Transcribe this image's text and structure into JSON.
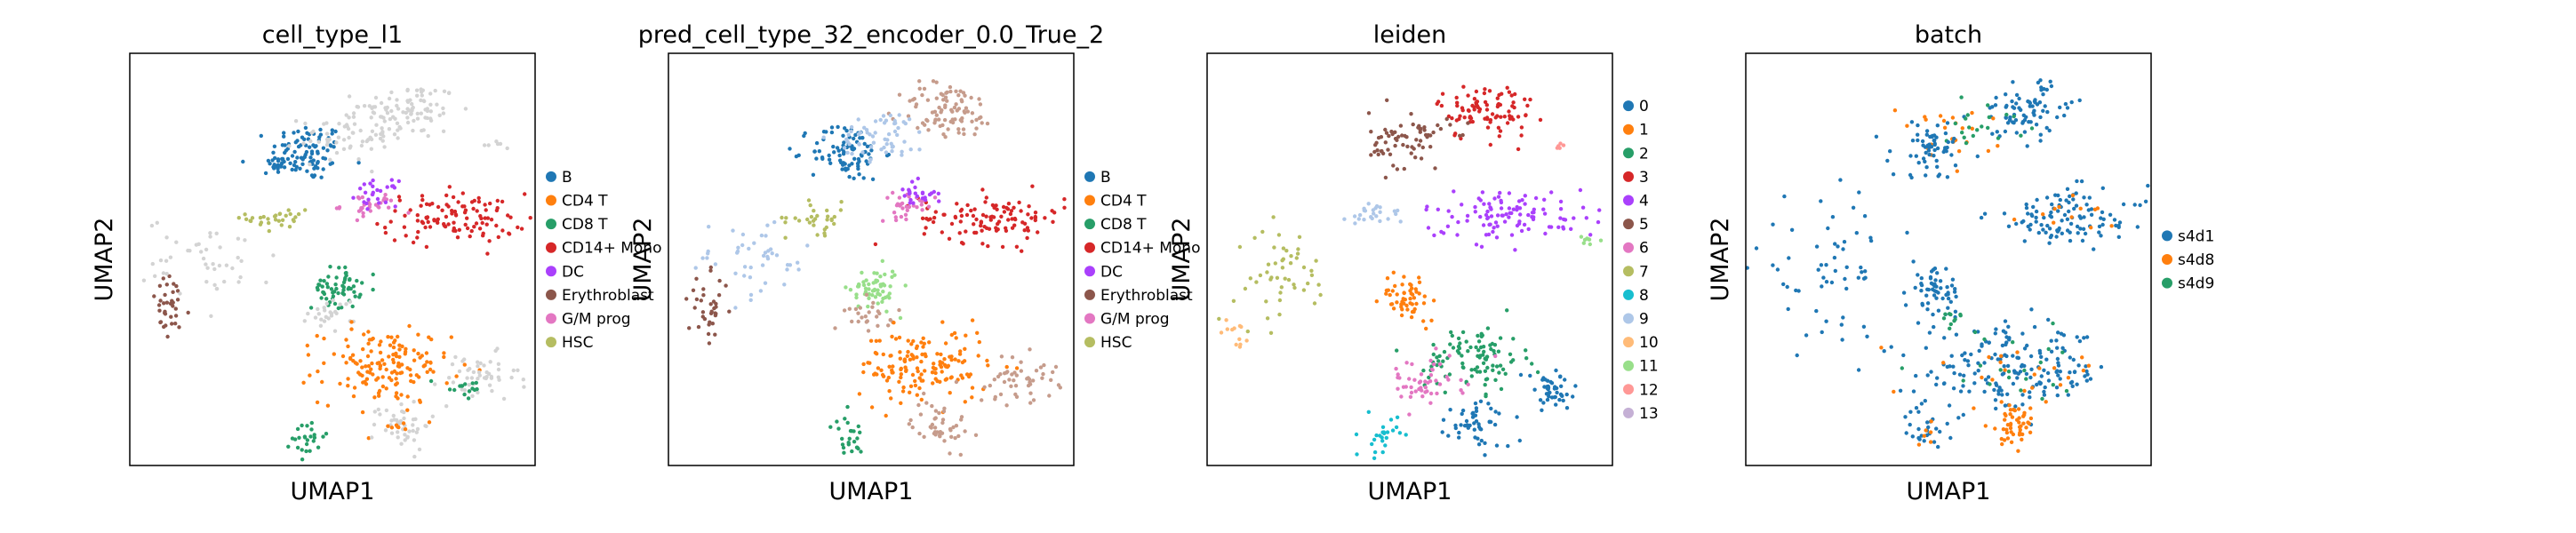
{
  "chart_data": [
    {
      "type": "scatter",
      "title": "cell_type_l1",
      "xlabel": "UMAP1",
      "ylabel": "UMAP2",
      "grid": false,
      "ticks": false,
      "legend_placement": "right",
      "legend": [
        "B",
        "CD4 T",
        "CD8 T",
        "CD14+ Mono",
        "DC",
        "Erythroblast",
        "G/M prog",
        "HSC"
      ],
      "colors": {
        "B": "#1f77b4",
        "CD4 T": "#ff7f0e",
        "CD8 T": "#279e68",
        "CD14+ Mono": "#d62728",
        "DC": "#aa40fc",
        "Erythroblast": "#8c564b",
        "G/M prog": "#e377c2",
        "HSC": "#b5bd61",
        "unlabeled": "#d3d3d3"
      },
      "clusters": [
        {
          "label": "B",
          "x": 4.4,
          "y": 7.6,
          "sx": 0.45,
          "sy": 0.35,
          "n": 90
        },
        {
          "label": "B",
          "x": 3.6,
          "y": 7.3,
          "sx": 0.2,
          "sy": 0.15,
          "n": 20
        },
        {
          "label": "unlabeled",
          "x": 6.9,
          "y": 8.6,
          "sx": 0.6,
          "sy": 0.35,
          "n": 90
        },
        {
          "label": "unlabeled",
          "x": 5.3,
          "y": 8.0,
          "sx": 0.55,
          "sy": 0.3,
          "n": 60
        },
        {
          "label": "unlabeled",
          "x": 9.1,
          "y": 7.8,
          "sx": 0.2,
          "sy": 0.1,
          "n": 6
        },
        {
          "label": "HSC",
          "x": 3.7,
          "y": 6.0,
          "sx": 0.4,
          "sy": 0.2,
          "n": 30
        },
        {
          "label": "CD14+ Mono",
          "x": 8.0,
          "y": 6.0,
          "sx": 0.9,
          "sy": 0.3,
          "n": 110
        },
        {
          "label": "G/M prog",
          "x": 5.9,
          "y": 6.3,
          "sx": 0.35,
          "sy": 0.15,
          "n": 30
        },
        {
          "label": "DC",
          "x": 6.1,
          "y": 6.6,
          "sx": 0.25,
          "sy": 0.15,
          "n": 25
        },
        {
          "label": "Erythroblast",
          "x": 1.0,
          "y": 3.8,
          "sx": 0.25,
          "sy": 0.4,
          "n": 35
        },
        {
          "label": "unlabeled",
          "x": 2.0,
          "y": 5.0,
          "sx": 0.8,
          "sy": 0.5,
          "n": 45
        },
        {
          "label": "CD8 T",
          "x": 5.1,
          "y": 4.3,
          "sx": 0.3,
          "sy": 0.25,
          "n": 60
        },
        {
          "label": "unlabeled",
          "x": 5.0,
          "y": 3.7,
          "sx": 0.3,
          "sy": 0.2,
          "n": 25
        },
        {
          "label": "CD4 T",
          "x": 6.3,
          "y": 2.4,
          "sx": 0.8,
          "sy": 0.45,
          "n": 150
        },
        {
          "label": "unlabeled",
          "x": 8.6,
          "y": 2.1,
          "sx": 0.5,
          "sy": 0.3,
          "n": 50
        },
        {
          "label": "CD8 T",
          "x": 8.2,
          "y": 1.9,
          "sx": 0.3,
          "sy": 0.15,
          "n": 15
        },
        {
          "label": "unlabeled",
          "x": 6.7,
          "y": 1.0,
          "sx": 0.35,
          "sy": 0.3,
          "n": 45
        },
        {
          "label": "CD4 T",
          "x": 6.6,
          "y": 1.0,
          "sx": 0.15,
          "sy": 0.1,
          "n": 8
        },
        {
          "label": "CD8 T",
          "x": 4.4,
          "y": 0.7,
          "sx": 0.2,
          "sy": 0.25,
          "n": 25
        }
      ]
    },
    {
      "type": "scatter",
      "title": "pred_cell_type_32_encoder_0.0_True_2",
      "xlabel": "UMAP1",
      "ylabel": "UMAP2",
      "grid": false,
      "ticks": false,
      "legend_placement": "right",
      "legend": [
        "B",
        "CD4 T",
        "CD8 T",
        "CD14+ Mono",
        "DC",
        "Erythroblast",
        "G/M prog",
        "HSC"
      ],
      "colors": {
        "B": "#1f77b4",
        "CD4 T": "#ff7f0e",
        "CD8 T": "#279e68",
        "CD14+ Mono": "#d62728",
        "DC": "#aa40fc",
        "Erythroblast": "#8c564b",
        "G/M prog": "#e377c2",
        "HSC": "#b5bd61",
        "other": "#c69c8c",
        "light": "#98df8a",
        "lightblue": "#aec7e8"
      },
      "clusters": [
        {
          "label": "B",
          "x": 4.4,
          "y": 7.6,
          "sx": 0.45,
          "sy": 0.35,
          "n": 90
        },
        {
          "label": "other",
          "x": 6.9,
          "y": 8.6,
          "sx": 0.6,
          "sy": 0.35,
          "n": 90
        },
        {
          "label": "lightblue",
          "x": 5.3,
          "y": 8.0,
          "sx": 0.55,
          "sy": 0.3,
          "n": 60
        },
        {
          "label": "HSC",
          "x": 3.7,
          "y": 6.0,
          "sx": 0.4,
          "sy": 0.2,
          "n": 30
        },
        {
          "label": "CD14+ Mono",
          "x": 8.0,
          "y": 6.0,
          "sx": 0.9,
          "sy": 0.3,
          "n": 110
        },
        {
          "label": "G/M prog",
          "x": 5.9,
          "y": 6.3,
          "sx": 0.35,
          "sy": 0.15,
          "n": 30
        },
        {
          "label": "DC",
          "x": 6.1,
          "y": 6.6,
          "sx": 0.25,
          "sy": 0.15,
          "n": 25
        },
        {
          "label": "Erythroblast",
          "x": 1.0,
          "y": 3.8,
          "sx": 0.25,
          "sy": 0.4,
          "n": 35
        },
        {
          "label": "lightblue",
          "x": 2.0,
          "y": 5.0,
          "sx": 0.8,
          "sy": 0.5,
          "n": 45
        },
        {
          "label": "light",
          "x": 5.1,
          "y": 4.3,
          "sx": 0.3,
          "sy": 0.25,
          "n": 60
        },
        {
          "label": "other",
          "x": 5.0,
          "y": 3.7,
          "sx": 0.3,
          "sy": 0.2,
          "n": 25
        },
        {
          "label": "CD4 T",
          "x": 6.3,
          "y": 2.4,
          "sx": 0.8,
          "sy": 0.45,
          "n": 150
        },
        {
          "label": "other",
          "x": 8.6,
          "y": 2.1,
          "sx": 0.5,
          "sy": 0.3,
          "n": 50
        },
        {
          "label": "other",
          "x": 6.7,
          "y": 1.0,
          "sx": 0.35,
          "sy": 0.3,
          "n": 45
        },
        {
          "label": "CD8 T",
          "x": 4.4,
          "y": 0.7,
          "sx": 0.2,
          "sy": 0.25,
          "n": 25
        }
      ]
    },
    {
      "type": "scatter",
      "title": "leiden",
      "xlabel": "UMAP1",
      "ylabel": "UMAP2",
      "grid": false,
      "ticks": false,
      "legend_placement": "right",
      "legend": [
        "0",
        "1",
        "2",
        "3",
        "4",
        "5",
        "6",
        "7",
        "8",
        "9",
        "10",
        "11",
        "12",
        "13"
      ],
      "colors": {
        "0": "#1f77b4",
        "1": "#ff7f0e",
        "2": "#279e68",
        "3": "#d62728",
        "4": "#aa40fc",
        "5": "#8c564b",
        "6": "#e377c2",
        "7": "#b5bd61",
        "8": "#17becf",
        "9": "#aec7e8",
        "10": "#ffbb78",
        "11": "#98df8a",
        "12": "#ff9896",
        "13": "#c5b0d5"
      },
      "clusters": [
        {
          "label": "3",
          "x": 6.9,
          "y": 8.6,
          "sx": 0.6,
          "sy": 0.35,
          "n": 90
        },
        {
          "label": "5",
          "x": 5.0,
          "y": 7.9,
          "sx": 0.5,
          "sy": 0.35,
          "n": 70
        },
        {
          "label": "9",
          "x": 4.2,
          "y": 6.1,
          "sx": 0.35,
          "sy": 0.15,
          "n": 25
        },
        {
          "label": "4",
          "x": 7.5,
          "y": 6.1,
          "sx": 1.1,
          "sy": 0.3,
          "n": 110
        },
        {
          "label": "11",
          "x": 9.3,
          "y": 5.4,
          "sx": 0.15,
          "sy": 0.1,
          "n": 8
        },
        {
          "label": "12",
          "x": 8.6,
          "y": 7.8,
          "sx": 0.15,
          "sy": 0.08,
          "n": 5
        },
        {
          "label": "7",
          "x": 1.9,
          "y": 4.6,
          "sx": 0.6,
          "sy": 0.6,
          "n": 50
        },
        {
          "label": "10",
          "x": 0.6,
          "y": 3.2,
          "sx": 0.2,
          "sy": 0.15,
          "n": 12
        },
        {
          "label": "1",
          "x": 5.0,
          "y": 4.1,
          "sx": 0.35,
          "sy": 0.3,
          "n": 55
        },
        {
          "label": "2",
          "x": 6.6,
          "y": 2.6,
          "sx": 0.6,
          "sy": 0.4,
          "n": 100
        },
        {
          "label": "6",
          "x": 5.3,
          "y": 2.0,
          "sx": 0.5,
          "sy": 0.3,
          "n": 50
        },
        {
          "label": "0",
          "x": 8.5,
          "y": 1.8,
          "sx": 0.35,
          "sy": 0.25,
          "n": 45
        },
        {
          "label": "0",
          "x": 6.7,
          "y": 1.0,
          "sx": 0.4,
          "sy": 0.3,
          "n": 50
        },
        {
          "label": "8",
          "x": 4.3,
          "y": 0.7,
          "sx": 0.2,
          "sy": 0.25,
          "n": 25
        }
      ]
    },
    {
      "type": "scatter",
      "title": "batch",
      "xlabel": "UMAP1",
      "ylabel": "UMAP2",
      "grid": false,
      "ticks": false,
      "legend_placement": "right",
      "legend": [
        "s4d1",
        "s4d8",
        "s4d9"
      ],
      "colors": {
        "s4d1": "#1f77b4",
        "s4d8": "#ff7f0e",
        "s4d9": "#279e68"
      },
      "clusters": [
        {
          "label": "s4d1",
          "x": 6.9,
          "y": 8.6,
          "sx": 0.6,
          "sy": 0.35,
          "n": 80
        },
        {
          "label": "s4d8",
          "x": 4.9,
          "y": 8.0,
          "sx": 0.6,
          "sy": 0.35,
          "n": 25
        },
        {
          "label": "s4d9",
          "x": 5.8,
          "y": 8.3,
          "sx": 0.6,
          "sy": 0.3,
          "n": 20
        },
        {
          "label": "s4d1",
          "x": 4.6,
          "y": 7.7,
          "sx": 0.5,
          "sy": 0.35,
          "n": 60
        },
        {
          "label": "s4d1",
          "x": 8.0,
          "y": 6.0,
          "sx": 1.0,
          "sy": 0.35,
          "n": 110
        },
        {
          "label": "s4d8",
          "x": 8.0,
          "y": 6.0,
          "sx": 0.9,
          "sy": 0.3,
          "n": 12
        },
        {
          "label": "s4d1",
          "x": 2.0,
          "y": 4.8,
          "sx": 0.9,
          "sy": 0.8,
          "n": 60
        },
        {
          "label": "s4d1",
          "x": 4.7,
          "y": 4.2,
          "sx": 0.3,
          "sy": 0.3,
          "n": 55
        },
        {
          "label": "s4d9",
          "x": 5.1,
          "y": 3.6,
          "sx": 0.15,
          "sy": 0.15,
          "n": 10
        },
        {
          "label": "s4d1",
          "x": 6.6,
          "y": 2.3,
          "sx": 1.2,
          "sy": 0.5,
          "n": 180
        },
        {
          "label": "s4d8",
          "x": 6.6,
          "y": 2.3,
          "sx": 1.1,
          "sy": 0.45,
          "n": 25
        },
        {
          "label": "s4d9",
          "x": 6.6,
          "y": 2.3,
          "sx": 1.1,
          "sy": 0.45,
          "n": 20
        },
        {
          "label": "s4d8",
          "x": 6.6,
          "y": 1.0,
          "sx": 0.3,
          "sy": 0.25,
          "n": 45
        },
        {
          "label": "s4d1",
          "x": 4.4,
          "y": 0.8,
          "sx": 0.25,
          "sy": 0.25,
          "n": 25
        },
        {
          "label": "s4d8",
          "x": 4.4,
          "y": 0.7,
          "sx": 0.15,
          "sy": 0.15,
          "n": 6
        }
      ]
    }
  ]
}
